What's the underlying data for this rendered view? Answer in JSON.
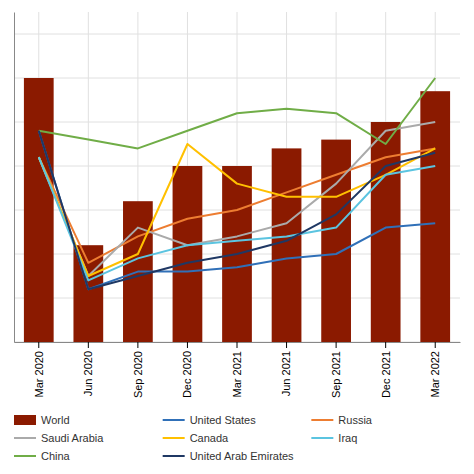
{
  "chart_data": {
    "type": "bar",
    "categories": [
      "Mar 2020",
      "Jun 2020",
      "Sep 2020",
      "Dec 2020",
      "Mar 2021",
      "Jun 2021",
      "Sep 2021",
      "Dec 2021",
      "Mar 2022"
    ],
    "series": [
      {
        "name": "World",
        "type": "bar",
        "color": "#8B1A00",
        "values": [
          100,
          62,
          72,
          80,
          80,
          84,
          86,
          90,
          97
        ]
      },
      {
        "name": "United States",
        "type": "line",
        "color": "#3070B8",
        "values": [
          88,
          52,
          56,
          56,
          57,
          59,
          60,
          66,
          67
        ]
      },
      {
        "name": "Russia",
        "type": "line",
        "color": "#ED7D31",
        "values": [
          82,
          58,
          64,
          68,
          70,
          74,
          78,
          82,
          84
        ]
      },
      {
        "name": "Saudi Arabia",
        "type": "line",
        "color": "#AAAAAA",
        "values": [
          82,
          55,
          66,
          62,
          64,
          67,
          76,
          88,
          90
        ]
      },
      {
        "name": "Canada",
        "type": "line",
        "color": "#FFC000",
        "values": [
          82,
          55,
          60,
          85,
          76,
          73,
          73,
          78,
          84
        ]
      },
      {
        "name": "Iraq",
        "type": "line",
        "color": "#5BC4E0",
        "values": [
          82,
          54,
          59,
          62,
          63,
          64,
          66,
          78,
          80
        ]
      },
      {
        "name": "China",
        "type": "line",
        "color": "#70AD47",
        "values": [
          88,
          86,
          84,
          88,
          92,
          93,
          92,
          85,
          100
        ]
      },
      {
        "name": "United Arab Emirates",
        "type": "line",
        "color": "#1F3864",
        "values": [
          88,
          52,
          55,
          58,
          60,
          63,
          69,
          80,
          83
        ]
      }
    ],
    "ylim": [
      40,
      115
    ],
    "yticks": [
      40,
      50,
      60,
      70,
      80,
      90,
      100,
      110
    ],
    "grid": true,
    "tick_labels": "x",
    "legend": "bottom"
  }
}
